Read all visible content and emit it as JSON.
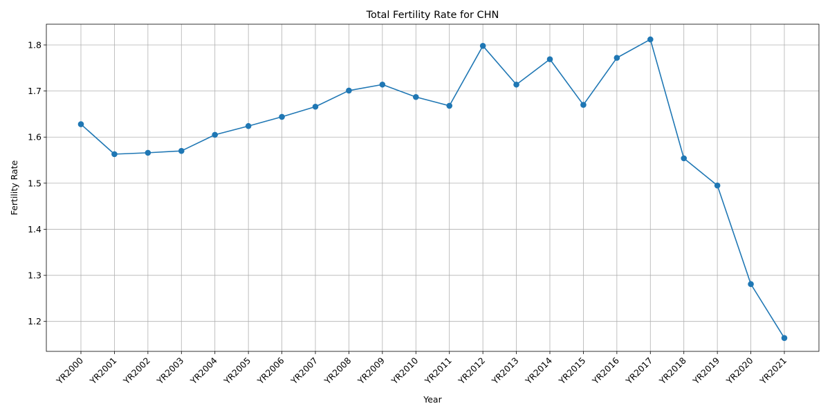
{
  "chart_data": {
    "type": "line",
    "title": "Total Fertility Rate for CHN",
    "xlabel": "Year",
    "ylabel": "Fertility Rate",
    "categories": [
      "YR2000",
      "YR2001",
      "YR2002",
      "YR2003",
      "YR2004",
      "YR2005",
      "YR2006",
      "YR2007",
      "YR2008",
      "YR2009",
      "YR2010",
      "YR2011",
      "YR2012",
      "YR2013",
      "YR2014",
      "YR2015",
      "YR2016",
      "YR2017",
      "YR2018",
      "YR2019",
      "YR2020",
      "YR2021"
    ],
    "series": [
      {
        "values": [
          1.628,
          1.563,
          1.566,
          1.57,
          1.605,
          1.624,
          1.644,
          1.666,
          1.701,
          1.714,
          1.687,
          1.668,
          1.798,
          1.714,
          1.769,
          1.67,
          1.772,
          1.812,
          1.554,
          1.495,
          1.281,
          1.164
        ],
        "color": "#1f77b4",
        "marker": "circle"
      }
    ],
    "ylim": [
      1.135,
      1.845
    ],
    "yticks": [
      "1.2",
      "1.3",
      "1.4",
      "1.5",
      "1.6",
      "1.7",
      "1.8"
    ],
    "grid": true,
    "legend": "none"
  }
}
